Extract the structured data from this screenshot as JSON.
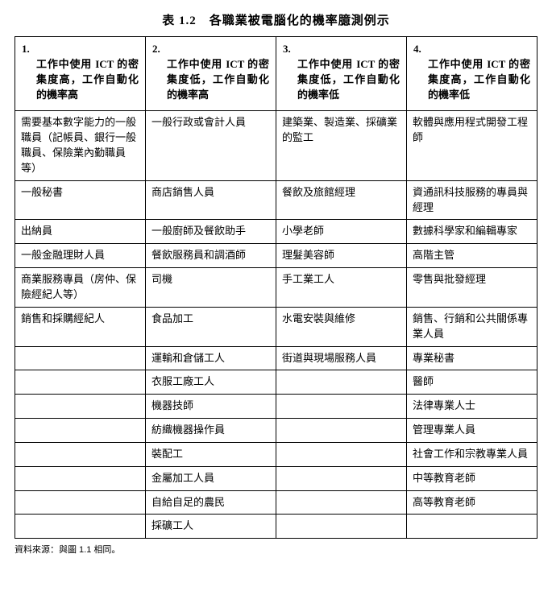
{
  "title": "表 1.2　各職業被電腦化的機率臆測例示",
  "headers": [
    {
      "num": "1.",
      "text": "工作中使用 ICT 的密集度高，工作自動化的機率高"
    },
    {
      "num": "2.",
      "text": "工作中使用 ICT 的密集度低，工作自動化的機率高"
    },
    {
      "num": "3.",
      "text": "工作中使用 ICT 的密集度低，工作自動化的機率低"
    },
    {
      "num": "4.",
      "text": "工作中使用 ICT 的密集度高，工作自動化的機率低"
    }
  ],
  "rows": [
    [
      "需要基本數字能力的一般職員（記帳員、銀行一般職員、保險業內勤職員等）",
      "一般行政或會計人員",
      "建築業、製造業、採礦業的監工",
      "軟體與應用程式開發工程師"
    ],
    [
      "一般秘書",
      "商店銷售人員",
      "餐飲及旅館經理",
      "資通訊科技服務的專員與經理"
    ],
    [
      "出納員",
      "一般廚師及餐飲助手",
      "小學老師",
      "數據科學家和編輯專家"
    ],
    [
      "一般金融理財人員",
      "餐飲服務員和調酒師",
      "理髮美容師",
      "高階主管"
    ],
    [
      "商業服務專員（房仲、保險經紀人等）",
      "司機",
      "手工業工人",
      "零售與批發經理"
    ],
    [
      "銷售和採購經紀人",
      "食品加工",
      "水電安裝與維修",
      "銷售、行銷和公共關係專業人員"
    ],
    [
      "",
      "運輸和倉儲工人",
      "街道與現場服務人員",
      "專業秘書"
    ],
    [
      "",
      "衣服工廠工人",
      "",
      "醫師"
    ],
    [
      "",
      "機器技師",
      "",
      "法律專業人士"
    ],
    [
      "",
      "紡織機器操作員",
      "",
      "管理專業人員"
    ],
    [
      "",
      "裝配工",
      "",
      "社會工作和宗教專業人員"
    ],
    [
      "",
      "金屬加工人員",
      "",
      "中等教育老師"
    ],
    [
      "",
      "自給自足的農民",
      "",
      "高等教育老師"
    ],
    [
      "",
      "採礦工人",
      "",
      ""
    ]
  ],
  "footnote": "資料來源：與圖 1.1 相同。"
}
